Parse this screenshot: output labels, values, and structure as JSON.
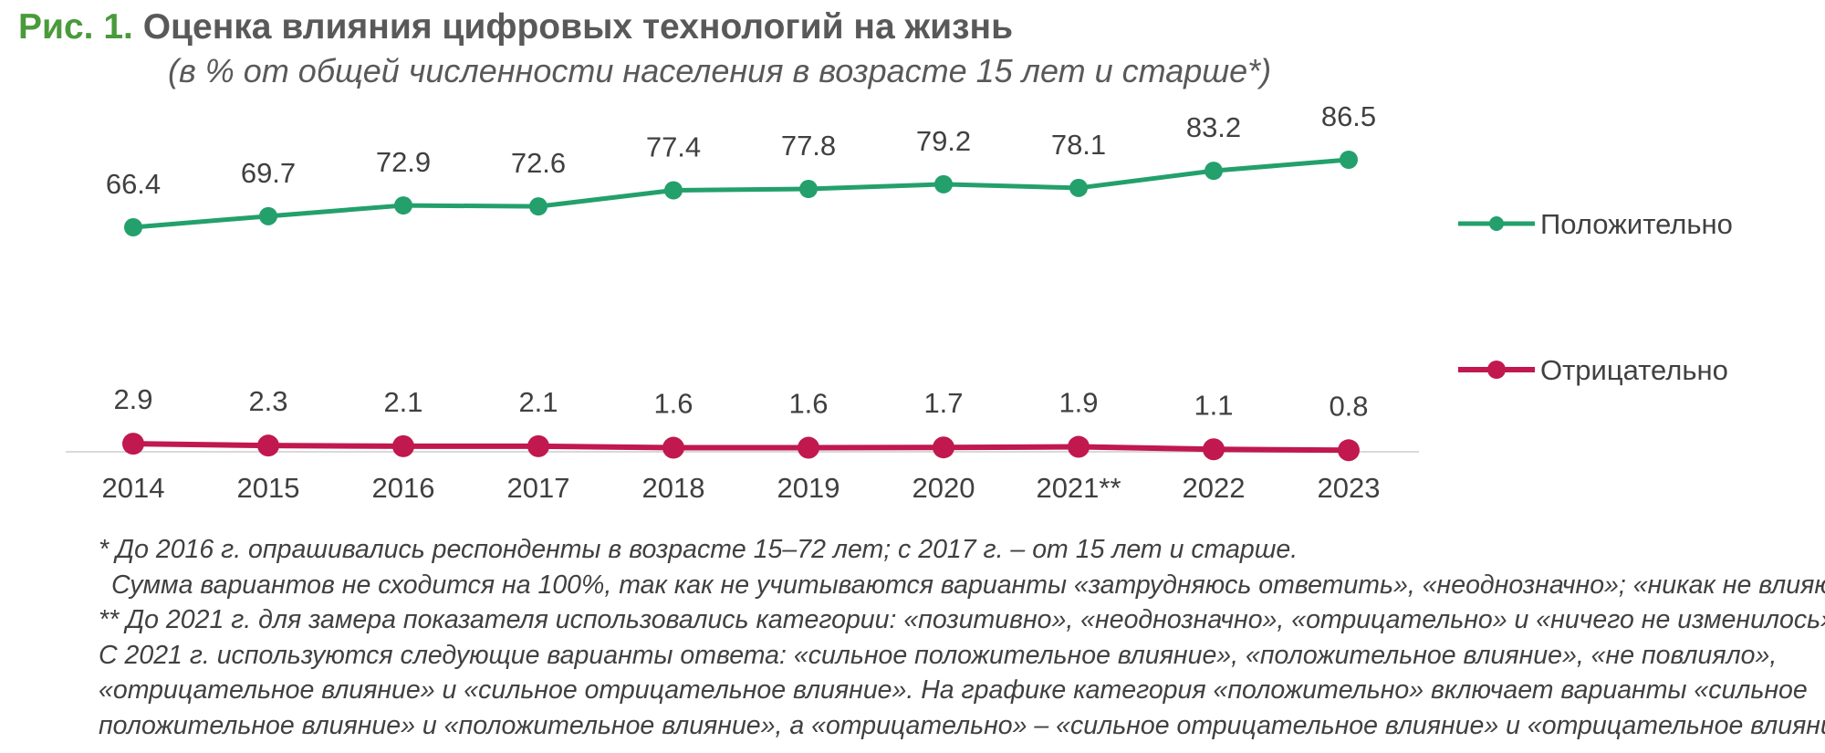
{
  "figure": {
    "label": "Рис. 1.",
    "title": "Оценка влияния цифровых технологий на жизнь",
    "subtitle": "(в % от общей численности населения в возрасте 15 лет и старше*)"
  },
  "chart_data": {
    "type": "line",
    "categories": [
      "2014",
      "2015",
      "2016",
      "2017",
      "2018",
      "2019",
      "2020",
      "2021**",
      "2022",
      "2023"
    ],
    "series": [
      {
        "name": "Положительно",
        "color": "#23a06b",
        "values": [
          66.4,
          69.7,
          72.9,
          72.6,
          77.4,
          77.8,
          79.2,
          78.1,
          83.2,
          86.5
        ]
      },
      {
        "name": "Отрицательно",
        "color": "#c0184f",
        "values": [
          2.9,
          2.3,
          2.1,
          2.1,
          1.6,
          1.6,
          1.7,
          1.9,
          1.1,
          0.8
        ]
      }
    ],
    "data_labels": true,
    "grid": false,
    "axis_line_color": "#d9d9d9",
    "legend_position": "right"
  },
  "notes": [
    "* До 2016 г. опрашивались респонденты в возрасте 15–72 лет; с 2017 г. – от 15 лет и старше.",
    "Сумма вариантов не сходится на 100%, так как не учитываются варианты «затрудняюсь ответить», «неоднозначно»; «никак не влияют».",
    "** До 2021 г. для замера показателя использовались категории: «позитивно», «неоднозначно», «отрицательно» и «ничего не изменилось».",
    "С 2021 г. используются следующие варианты ответа: «сильное положительное влияние», «положительное влияние», «не повлияло»,",
    "«отрицательное влияние» и «сильное отрицательное влияние». На графике категория «положительно» включает варианты «сильное",
    "положительное влияние» и «положительное влияние», а «отрицательно» – «сильное отрицательное влияние» и «отрицательное влияние»."
  ]
}
